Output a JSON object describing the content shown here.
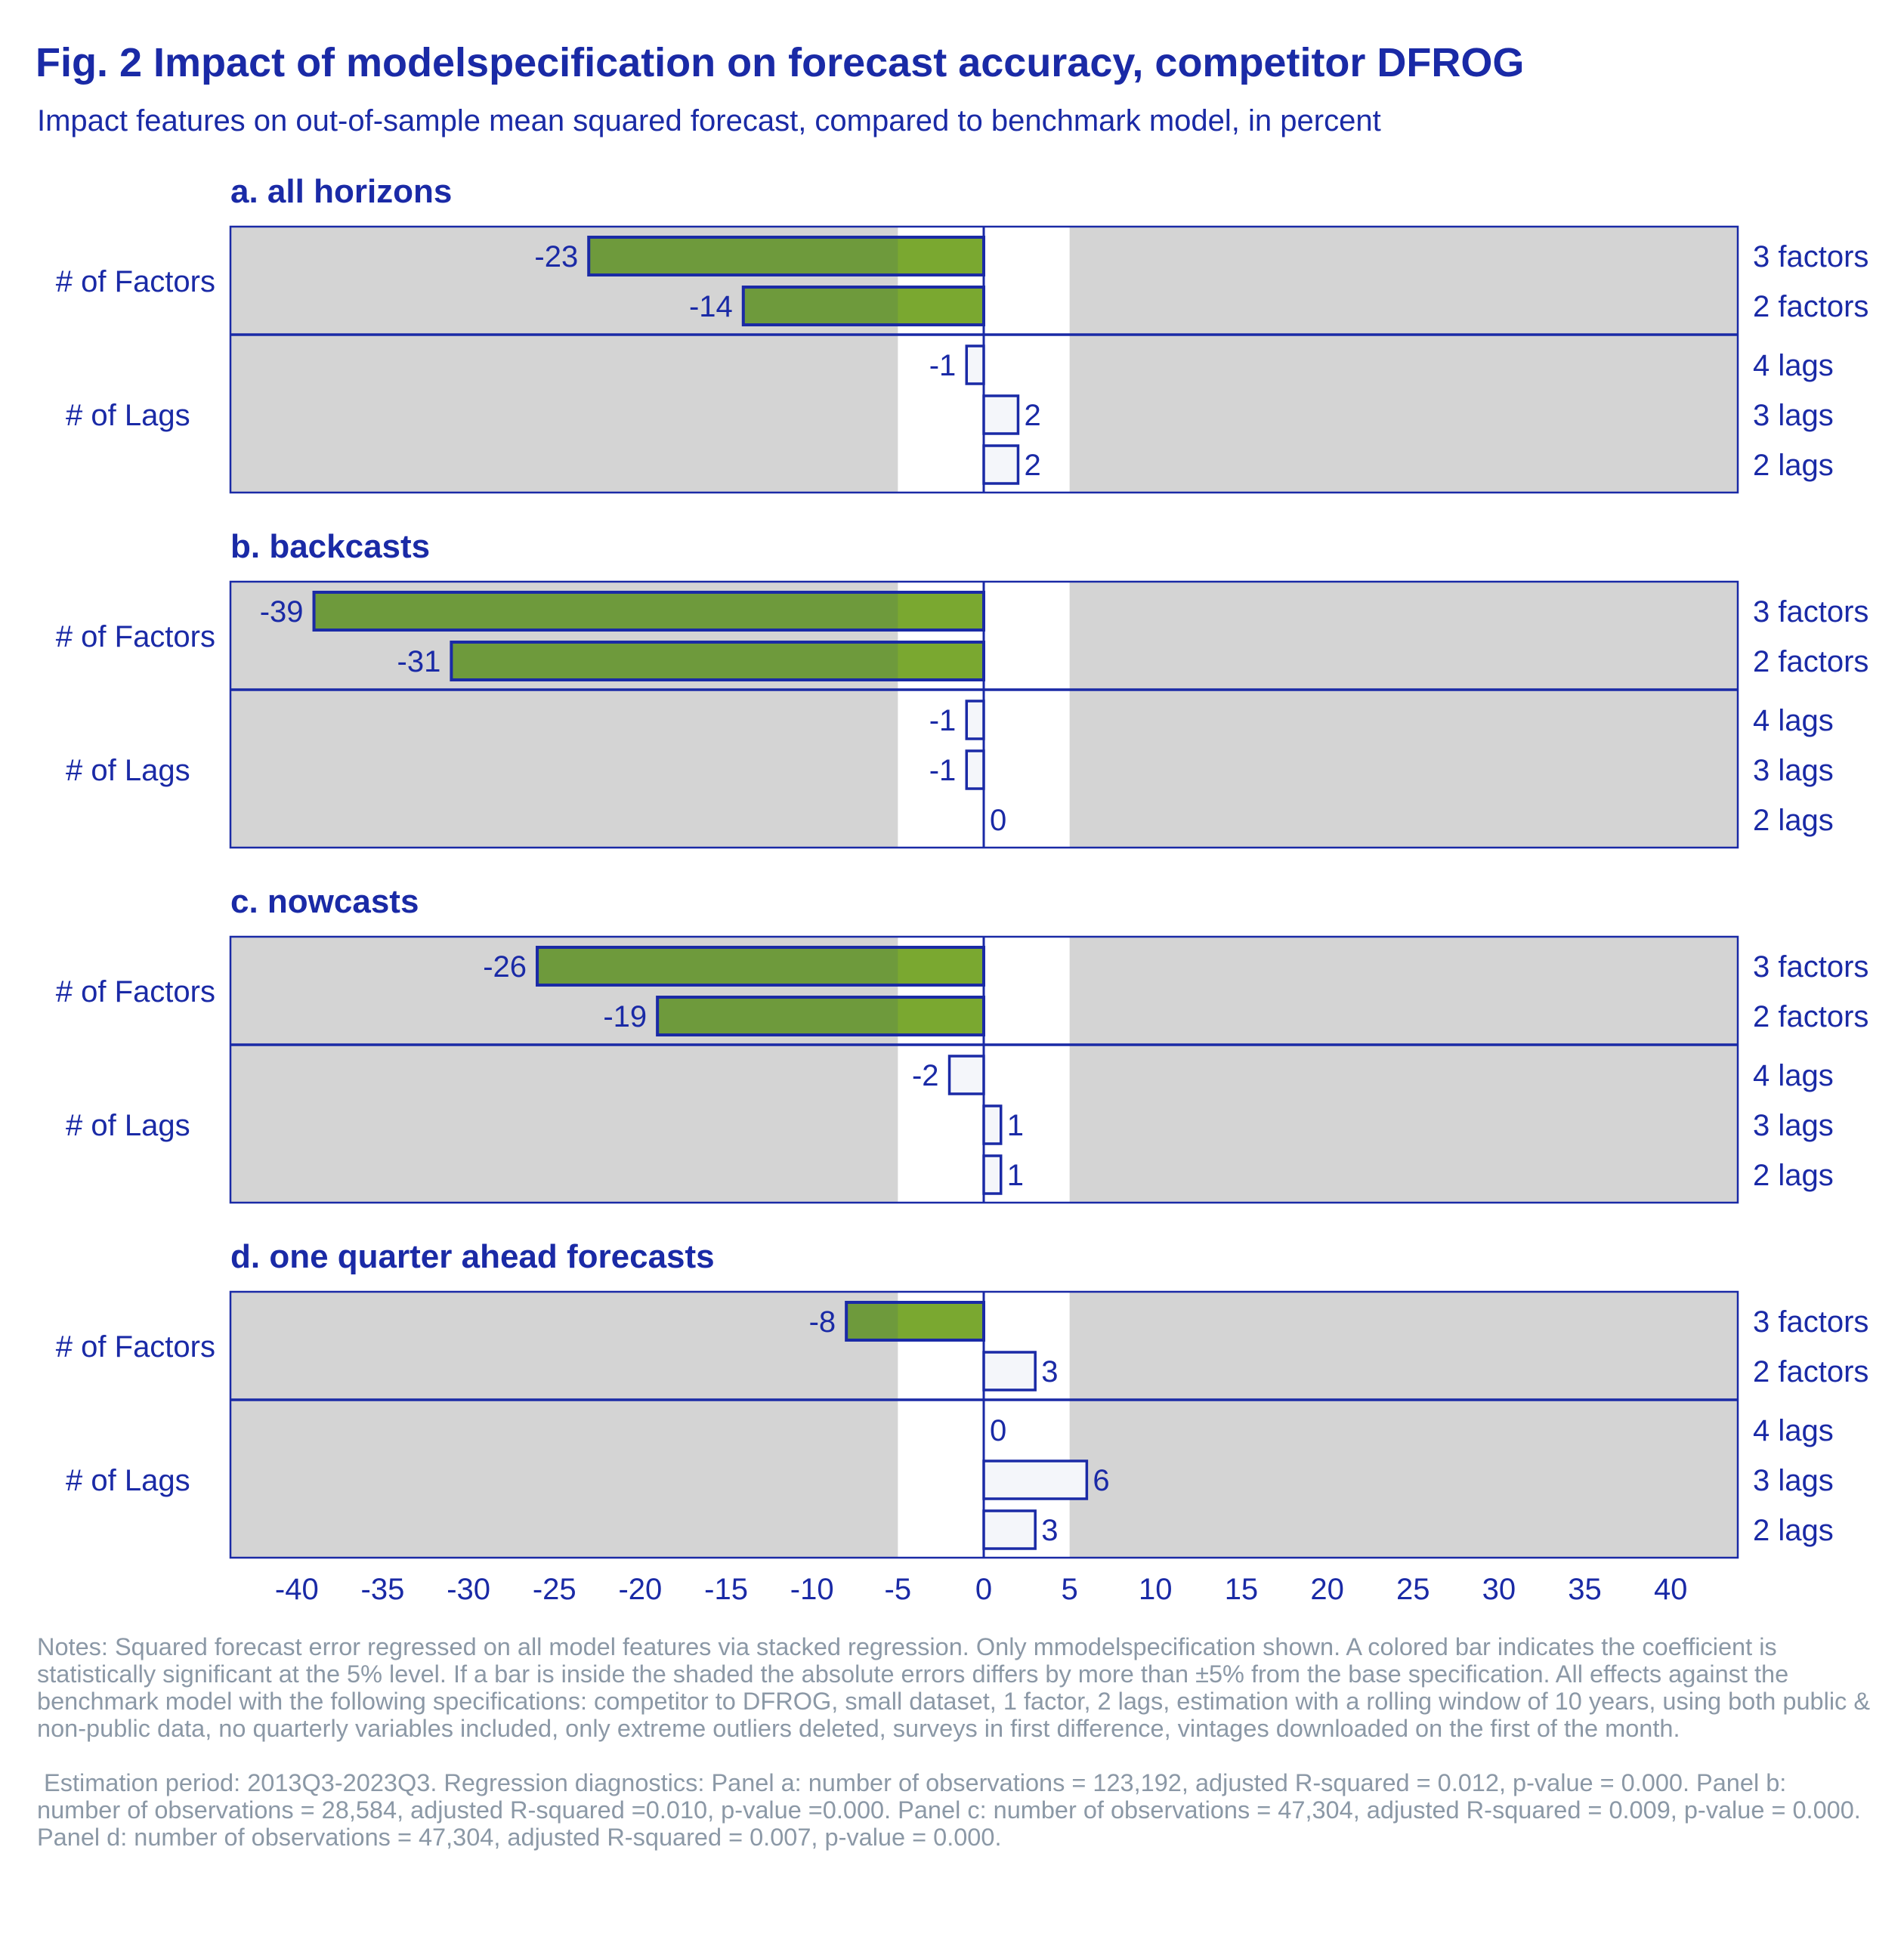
{
  "title": "Fig. 2 Impact of modelspecification on forecast accuracy, competitor DFROG",
  "subtitle": "Impact features on out-of-sample mean squared forecast, compared to benchmark model, in percent",
  "colors": {
    "text": "#1a2aa6",
    "frame": "#1a2aa6",
    "shade": "#d4d4d4",
    "significant_bar": "#7aa830",
    "significant_overlay": "#6e9a3c",
    "insignificant_bar": "#f4f6fa",
    "notes": "#8b98a6"
  },
  "chart_data": [
    {
      "type": "bar",
      "orientation": "horizontal",
      "title": "a. all horizons",
      "groups": [
        {
          "label": "# of Factors",
          "items": [
            {
              "label": "3 factors",
              "value": -23,
              "value_label": "-23",
              "significant": true
            },
            {
              "label": "2 factors",
              "value": -14,
              "value_label": "-14",
              "significant": true
            }
          ]
        },
        {
          "label": "# of Lags",
          "items": [
            {
              "label": "4 lags",
              "value": -1,
              "value_label": "-1",
              "significant": false
            },
            {
              "label": "3 lags",
              "value": 2,
              "value_label": "2",
              "significant": false
            },
            {
              "label": "2 lags",
              "value": 2,
              "value_label": "2",
              "significant": false
            }
          ]
        }
      ]
    },
    {
      "type": "bar",
      "orientation": "horizontal",
      "title": "b. backcasts",
      "groups": [
        {
          "label": "# of Factors",
          "items": [
            {
              "label": "3 factors",
              "value": -39,
              "value_label": "-39",
              "significant": true
            },
            {
              "label": "2 factors",
              "value": -31,
              "value_label": "-31",
              "significant": true
            }
          ]
        },
        {
          "label": "# of Lags",
          "items": [
            {
              "label": "4 lags",
              "value": -1,
              "value_label": "-1",
              "significant": false
            },
            {
              "label": "3 lags",
              "value": -1,
              "value_label": "-1",
              "significant": false
            },
            {
              "label": "2 lags",
              "value": 0,
              "value_label": "0",
              "significant": false
            }
          ]
        }
      ]
    },
    {
      "type": "bar",
      "orientation": "horizontal",
      "title": "c. nowcasts",
      "groups": [
        {
          "label": "# of Factors",
          "items": [
            {
              "label": "3 factors",
              "value": -26,
              "value_label": "-26",
              "significant": true
            },
            {
              "label": "2 factors",
              "value": -19,
              "value_label": "-19",
              "significant": true
            }
          ]
        },
        {
          "label": "# of Lags",
          "items": [
            {
              "label": "4 lags",
              "value": -2,
              "value_label": "-2",
              "significant": false
            },
            {
              "label": "3 lags",
              "value": 1,
              "value_label": "1",
              "significant": false
            },
            {
              "label": "2 lags",
              "value": 1,
              "value_label": "1",
              "significant": false
            }
          ]
        }
      ]
    },
    {
      "type": "bar",
      "orientation": "horizontal",
      "title": "d. one quarter ahead forecasts",
      "groups": [
        {
          "label": "# of Factors",
          "items": [
            {
              "label": "3 factors",
              "value": -8,
              "value_label": "-8",
              "significant": true
            },
            {
              "label": "2 factors",
              "value": 3,
              "value_label": "3",
              "significant": false
            }
          ]
        },
        {
          "label": "# of Lags",
          "items": [
            {
              "label": "4 lags",
              "value": 0,
              "value_label": "0",
              "significant": false
            },
            {
              "label": "3 lags",
              "value": 6,
              "value_label": "6",
              "significant": false
            },
            {
              "label": "2 lags",
              "value": 3,
              "value_label": "3",
              "significant": false
            }
          ]
        }
      ]
    }
  ],
  "x_axis": {
    "range": [
      -44,
      44
    ],
    "ticks": [
      -40,
      -35,
      -30,
      -25,
      -20,
      -15,
      -10,
      -5,
      0,
      5,
      10,
      15,
      20,
      25,
      30,
      35,
      40
    ],
    "tick_labels": [
      "-40",
      "-35",
      "-30",
      "-25",
      "-20",
      "-15",
      "-10",
      "-5",
      "0",
      "5",
      "10",
      "15",
      "20",
      "25",
      "30",
      "35",
      "40"
    ],
    "unshaded_band": [
      -5,
      5
    ]
  },
  "notes": {
    "paragraph1": "Notes: Squared forecast error regressed on all model features via stacked regression. Only mmodelspecification shown. A colored bar indicates the coefficient is statistically significant at the 5% level. If a bar is inside the shaded the absolute errors differs by more than ±5% from the base specification. All effects against the benchmark model with the following specifications: competitor to DFROG, small dataset, 1 factor, 2 lags, estimation with a rolling window of 10 years, using both public & non-public data, no quarterly variables included, only extreme outliers deleted, surveys in first difference, vintages downloaded on the first of the month.",
    "paragraph2": " Estimation period: 2013Q3-2023Q3. Regression diagnostics: Panel a: number of observations = 123,192, adjusted R-squared = 0.012, p-value = 0.000. Panel b: number of observations = 28,584, adjusted R-squared =0.010, p-value =0.000. Panel c: number of observations = 47,304, adjusted R-squared = 0.009, p-value = 0.000. Panel d: number of observations = 47,304, adjusted R-squared = 0.007, p-value = 0.000."
  }
}
